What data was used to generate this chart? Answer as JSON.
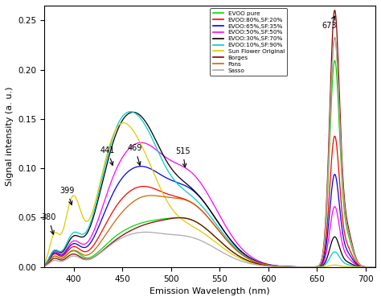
{
  "title": "",
  "xlabel": "Emission Wavelength (nm)",
  "ylabel": "Signal intensity (a. u.)",
  "xlim": [
    370,
    710
  ],
  "ylim": [
    0,
    0.265
  ],
  "yticks": [
    0,
    0.05,
    0.1,
    0.15,
    0.2,
    0.25
  ],
  "xticks": [
    400,
    450,
    500,
    550,
    600,
    650,
    700
  ],
  "series": [
    {
      "label": "EVOO pure",
      "color": "#00dd00"
    },
    {
      "label": "EVOO:80%,SF:20%",
      "color": "#ff0000"
    },
    {
      "label": "EVOO:65%,SF:35%",
      "color": "#0000ee"
    },
    {
      "label": "EVOO:50%,SF:50%",
      "color": "#ff00ff"
    },
    {
      "label": "EVOO:30%,SF:70%",
      "color": "#000000"
    },
    {
      "label": "EVOO:10%,SF:90%",
      "color": "#00cccc"
    },
    {
      "label": "Sun Flower Original",
      "color": "#ddcc00"
    },
    {
      "label": "Borges",
      "color": "#880000"
    },
    {
      "label": "Pons",
      "color": "#cc6600"
    },
    {
      "label": "Sasso",
      "color": "#aaaaaa"
    }
  ]
}
